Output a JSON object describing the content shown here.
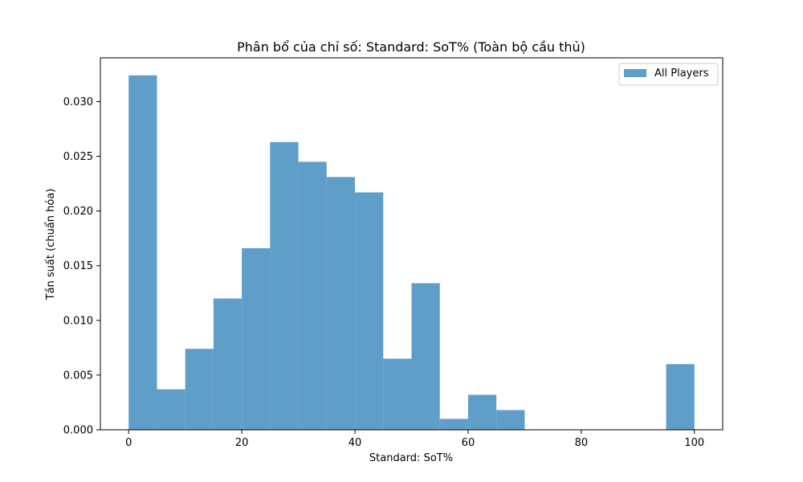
{
  "chart_data": {
    "type": "bar",
    "title": "Phân bổ của chỉ số: Standard: SoT% (Toàn bộ cầu thủ)",
    "xlabel": "Standard: SoT%",
    "ylabel": "Tần suất (chuẩn hóa)",
    "xlim": [
      -5,
      105
    ],
    "ylim": [
      0,
      0.034
    ],
    "xticks": [
      0,
      20,
      40,
      60,
      80,
      100
    ],
    "xtick_labels": [
      "0",
      "20",
      "40",
      "60",
      "80",
      "100"
    ],
    "yticks": [
      0,
      0.005,
      0.01,
      0.015,
      0.02,
      0.025,
      0.03
    ],
    "ytick_labels": [
      "0.000",
      "0.005",
      "0.010",
      "0.015",
      "0.020",
      "0.025",
      "0.030"
    ],
    "grid": false,
    "legend_position": "top-right",
    "bin_edges": [
      0,
      5,
      10,
      15,
      20,
      25,
      30,
      35,
      40,
      45,
      50,
      55,
      60,
      65,
      70,
      75,
      80,
      85,
      90,
      95,
      100
    ],
    "series": [
      {
        "name": "All Players",
        "color": "#5f9ec9",
        "values": [
          0.0324,
          0.0037,
          0.0074,
          0.012,
          0.0166,
          0.0263,
          0.0245,
          0.0231,
          0.0217,
          0.0065,
          0.0134,
          0.001,
          0.0032,
          0.0018,
          0,
          0,
          0,
          0,
          0,
          0.006
        ]
      }
    ]
  }
}
